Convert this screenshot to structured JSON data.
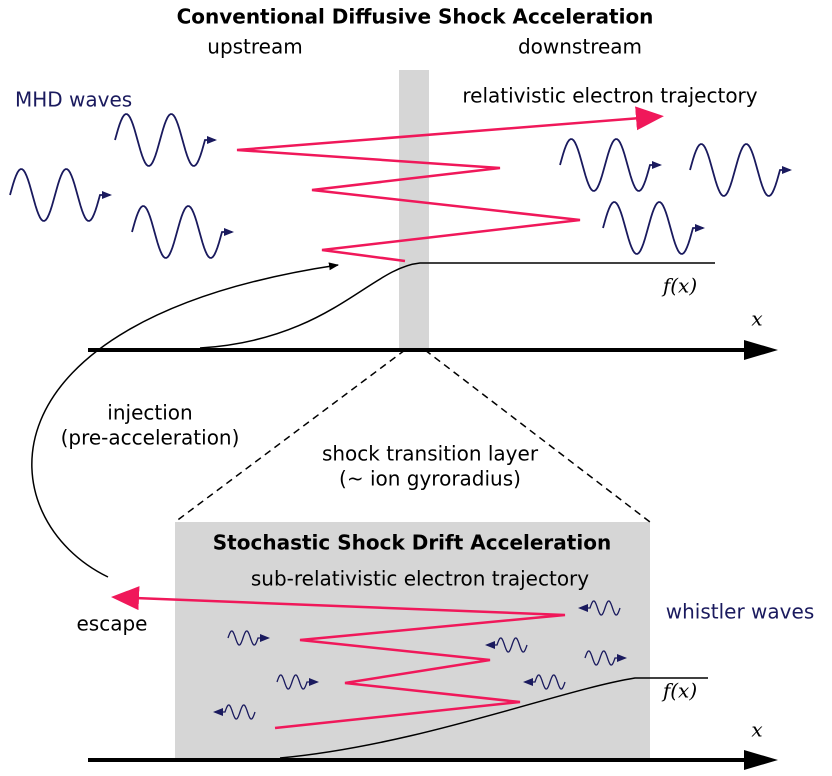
{
  "top": {
    "title": "Conventional Diffusive Shock Acceleration",
    "upstream": "upstream",
    "downstream": "downstream",
    "waves_label": "MHD waves",
    "trajectory_label": "relativistic electron trajectory",
    "distribution_label": "f(x)",
    "axis_label": "x"
  },
  "injection": {
    "line1": "injection",
    "line2": "(pre-acceleration)"
  },
  "transition": {
    "line1": "shock transition layer",
    "line2": "(~ ion gyroradius)"
  },
  "bottom": {
    "title": "Stochastic Shock Drift Acceleration",
    "trajectory_label": "sub-relativistic electron trajectory",
    "waves_label": "whistler waves",
    "escape_label": "escape",
    "distribution_label": "f(x)",
    "axis_label": "x"
  }
}
